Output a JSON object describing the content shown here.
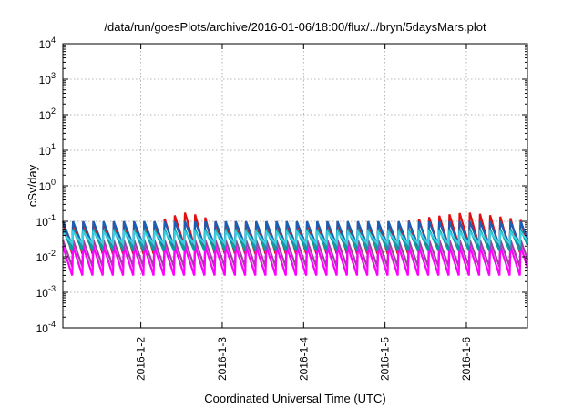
{
  "chart_data": {
    "type": "line",
    "title": "/data/run/goesPlots/archive/2016-01-06/18:00/flux/../bryn/5daysMars.plot",
    "xlabel": "Coordinated Universal Time (UTC)",
    "ylabel": "cSv/day",
    "x_range": [
      "2016-01-01T01:00",
      "2016-01-06T18:00"
    ],
    "x_ticks": [
      "2016-1-2",
      "2016-1-3",
      "2016-1-4",
      "2016-1-5",
      "2016-1-6"
    ],
    "y_scale": "log",
    "ylim": [
      0.0001,
      10000
    ],
    "y_ticks": [
      {
        "base": "10",
        "exp": "-4"
      },
      {
        "base": "10",
        "exp": "-3"
      },
      {
        "base": "10",
        "exp": "-2"
      },
      {
        "base": "10",
        "exp": "-1"
      },
      {
        "base": "10",
        "exp": "0"
      },
      {
        "base": "10",
        "exp": "1"
      },
      {
        "base": "10",
        "exp": "2"
      },
      {
        "base": "10",
        "exp": "3"
      },
      {
        "base": "10",
        "exp": "4"
      }
    ],
    "grid": true,
    "pattern": {
      "sawtooth_period_hours": 3,
      "first_peak": "2016-01-01T01:00"
    },
    "series": [
      {
        "color": "#e01010",
        "peak": 0.1,
        "trough": 0.01
      },
      {
        "color": "#a040a0",
        "peak": 0.03,
        "trough": 0.0045
      },
      {
        "color": "#ff00ff",
        "peak": 0.02,
        "trough": 0.0025
      },
      {
        "color": "#1a5fb4",
        "peak": 0.1,
        "trough": 0.018
      },
      {
        "color": "#0a9aa0",
        "peak": 0.06,
        "trough": 0.013
      },
      {
        "color": "#3ccfe0",
        "peak": 0.05,
        "trough": 0.022
      }
    ],
    "events": [
      {
        "start": "2016-01-02T05:00",
        "end": "2016-01-02T22:00",
        "peak": 0.18,
        "color": "#e01010"
      },
      {
        "start": "2016-01-05T06:00",
        "end": "2016-01-06T18:00",
        "peak": 0.12,
        "color": "#e01010"
      }
    ]
  }
}
